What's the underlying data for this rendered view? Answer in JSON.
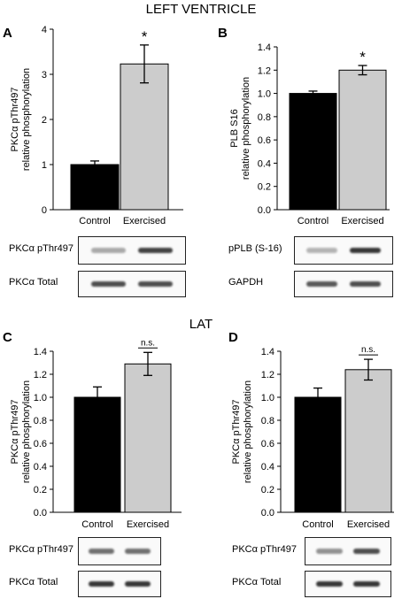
{
  "figure": {
    "section_titles": [
      "LEFT VENTRICLE",
      "LAT"
    ]
  },
  "colors": {
    "control": "#000000",
    "exercised": "#cccccc",
    "axis": "#000000"
  },
  "chart_data": [
    {
      "type": "bar",
      "panel_letter": "A",
      "categories": [
        "Control",
        "Exercised"
      ],
      "values": [
        1.0,
        3.23
      ],
      "errors": [
        0.08,
        0.42
      ],
      "annotations": [
        "",
        "*"
      ],
      "ylabel_lines": [
        "PKCα pThr497",
        "relative phosphorylation"
      ],
      "ylim": [
        0,
        4
      ],
      "yticks": [
        0,
        1,
        2,
        3,
        4
      ],
      "ytick_labels": [
        "0",
        "1",
        "2",
        "3",
        "4"
      ],
      "blot_labels": [
        "PKCα pThr497",
        "PKCα Total"
      ]
    },
    {
      "type": "bar",
      "panel_letter": "B",
      "categories": [
        "Control",
        "Exercised"
      ],
      "values": [
        1.0,
        1.2
      ],
      "errors": [
        0.02,
        0.04
      ],
      "annotations": [
        "",
        "*"
      ],
      "ylabel_lines": [
        "PLB S16",
        "relative phosphorylation"
      ],
      "ylim": [
        0,
        1.4
      ],
      "yticks": [
        0,
        0.2,
        0.4,
        0.6,
        0.8,
        1.0,
        1.2,
        1.4
      ],
      "ytick_labels": [
        "0.0",
        "0.2",
        "0.4",
        "0.6",
        "0.8",
        "1.0",
        "1.2",
        "1.4"
      ],
      "blot_labels": [
        "pPLB (S-16)",
        "GAPDH"
      ]
    },
    {
      "type": "bar",
      "panel_letter": "C",
      "categories": [
        "Control",
        "Exercised"
      ],
      "values": [
        1.0,
        1.29
      ],
      "errors": [
        0.09,
        0.1
      ],
      "annotations": [
        "",
        "n.s."
      ],
      "ylabel_lines": [
        "PKCα pThr497",
        "relative phosphorylation"
      ],
      "ylim": [
        0,
        1.4
      ],
      "yticks": [
        0,
        0.2,
        0.4,
        0.6,
        0.8,
        1.0,
        1.2,
        1.4
      ],
      "ytick_labels": [
        "0.0",
        "0.2",
        "0.4",
        "0.6",
        "0.8",
        "1.0",
        "1.2",
        "1.4"
      ],
      "blot_labels": [
        "PKCα pThr497",
        "PKCα Total"
      ]
    },
    {
      "type": "bar",
      "panel_letter": "D",
      "categories": [
        "Control",
        "Exercised"
      ],
      "values": [
        1.0,
        1.24
      ],
      "errors": [
        0.08,
        0.09
      ],
      "annotations": [
        "",
        "n.s."
      ],
      "ylabel_lines": [
        "PKCα pThr497",
        "relative phosphorylation"
      ],
      "ylim": [
        0,
        1.4
      ],
      "yticks": [
        0,
        0.2,
        0.4,
        0.6,
        0.8,
        1.0,
        1.2,
        1.4
      ],
      "ytick_labels": [
        "0.0",
        "0.2",
        "0.4",
        "0.6",
        "0.8",
        "1.0",
        "1.2",
        "1.4"
      ],
      "blot_labels": [
        "PKCα pThr497",
        "PKCα Total"
      ]
    }
  ]
}
